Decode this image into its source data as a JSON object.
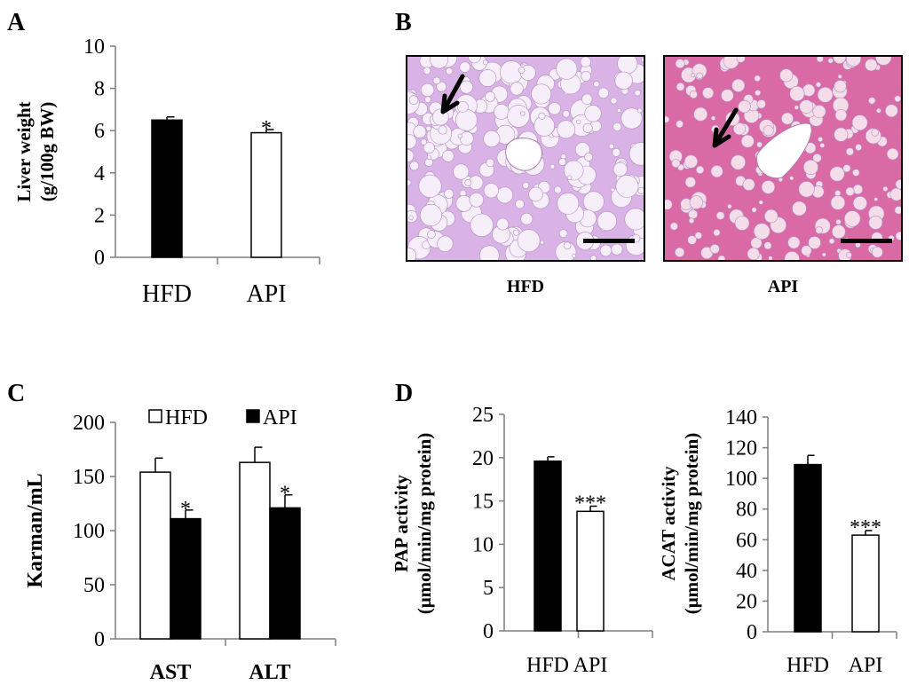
{
  "panels": {
    "A": {
      "letter": "A"
    },
    "B": {
      "letter": "B",
      "images": [
        {
          "label": "HFD"
        },
        {
          "label": "API"
        }
      ]
    },
    "C": {
      "letter": "C"
    },
    "D": {
      "letter": "D"
    }
  },
  "colors": {
    "black": "#000000",
    "white": "#ffffff",
    "axis": "#7f7f7f",
    "hfd_tissue": "#d9b3e6",
    "api_tissue": "#d96aa6"
  },
  "chart_data": [
    {
      "id": "A",
      "type": "bar",
      "ylabel": [
        "Liver weight",
        "(g/100g BW)"
      ],
      "categories": [
        "HFD",
        "API"
      ],
      "values": [
        6.5,
        5.9
      ],
      "errors": [
        0.15,
        0.15
      ],
      "fills": [
        "black",
        "white"
      ],
      "significance": [
        "",
        "*"
      ],
      "ylim": [
        0,
        10
      ],
      "yticks": [
        0,
        2,
        4,
        6,
        8,
        10
      ]
    },
    {
      "id": "C",
      "type": "bar",
      "ylabel": [
        "Karman/mL"
      ],
      "categories": [
        "AST",
        "ALT"
      ],
      "series": [
        {
          "name": "HFD",
          "values": [
            154,
            163
          ],
          "errors": [
            13,
            14
          ],
          "fill": "white"
        },
        {
          "name": "API",
          "values": [
            111,
            121
          ],
          "errors": [
            8,
            12
          ],
          "fill": "black"
        }
      ],
      "significance": [
        [
          "",
          "*"
        ],
        [
          "",
          "*"
        ]
      ],
      "legend": "top",
      "ylim": [
        0,
        200
      ],
      "yticks": [
        0,
        50,
        100,
        150,
        200
      ]
    },
    {
      "id": "D1",
      "type": "bar",
      "ylabel": [
        "PAP activity",
        "(μmol/min/mg protein)"
      ],
      "categories": [
        "HFD",
        "API"
      ],
      "values": [
        19.6,
        13.8
      ],
      "errors": [
        0.5,
        0.6
      ],
      "fills": [
        "black",
        "white"
      ],
      "significance": [
        "",
        "***"
      ],
      "ylim": [
        0,
        25
      ],
      "yticks": [
        0,
        5,
        10,
        15,
        20,
        25
      ]
    },
    {
      "id": "D2",
      "type": "bar",
      "ylabel": [
        "ACAT activity",
        "(μmol/min/mg protein)"
      ],
      "categories": [
        "HFD",
        "API"
      ],
      "values": [
        109,
        63
      ],
      "errors": [
        6,
        3
      ],
      "fills": [
        "black",
        "white"
      ],
      "significance": [
        "",
        "***"
      ],
      "ylim": [
        0,
        140
      ],
      "yticks": [
        0,
        20,
        40,
        60,
        80,
        100,
        120,
        140
      ]
    }
  ]
}
